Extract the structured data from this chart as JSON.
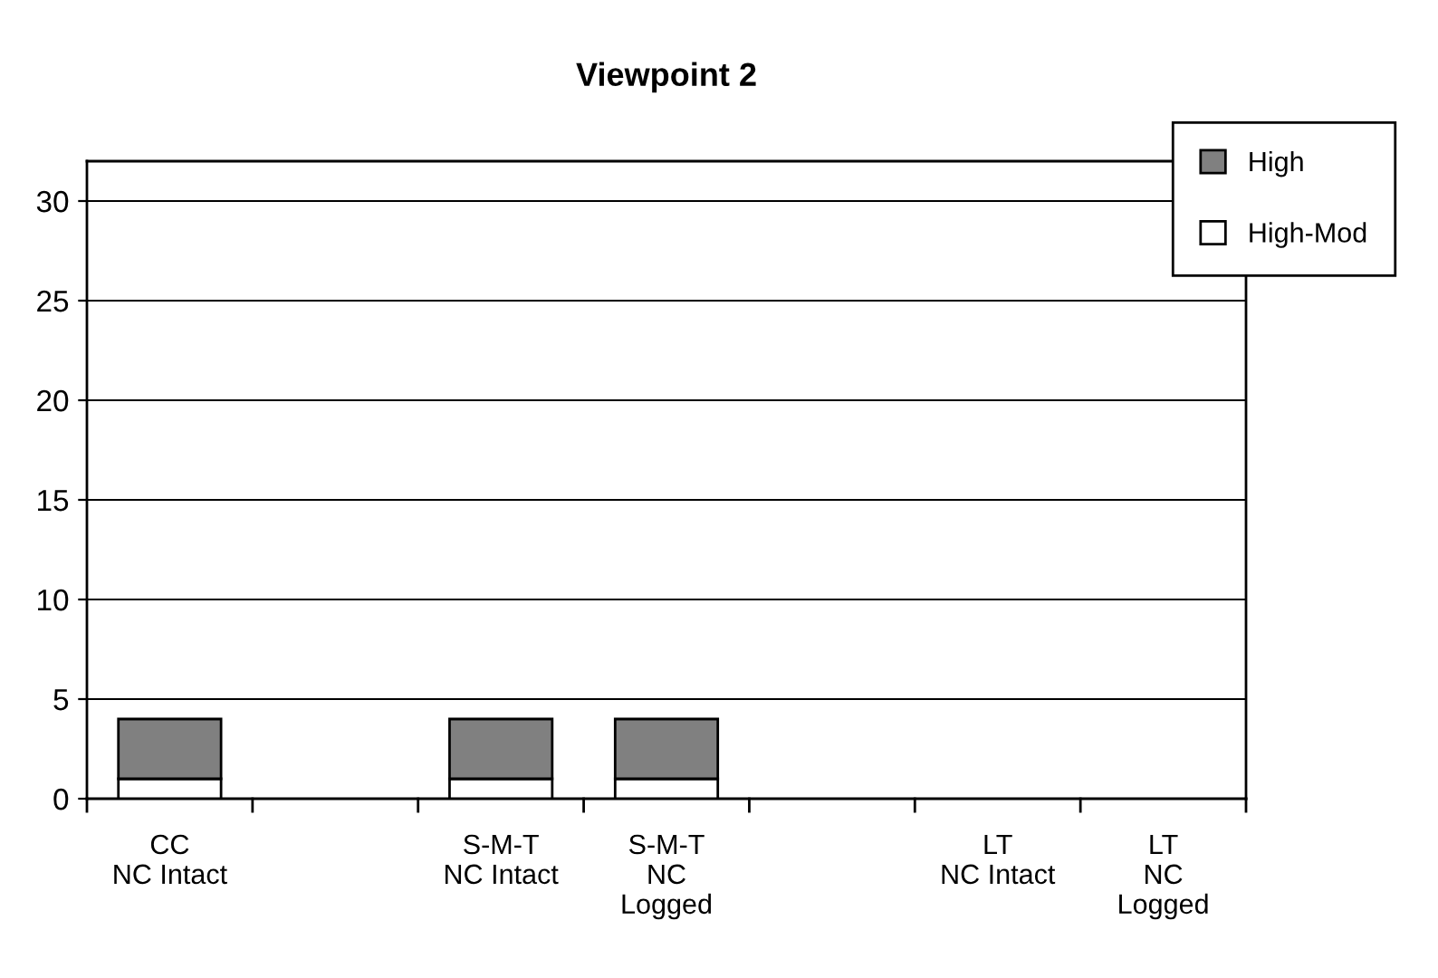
{
  "chart_data": {
    "type": "bar",
    "title": "Viewpoint 2",
    "stacked": true,
    "categories": [
      "CC\nNC Intact",
      null,
      "S-M-T\nNC Intact",
      "S-M-T\nNC\nLogged",
      null,
      "LT\nNC Intact",
      "LT\nNC\nLogged"
    ],
    "series": [
      {
        "name": "High-Mod",
        "color": "#ffffff",
        "values": [
          1,
          0,
          1,
          1,
          0,
          0,
          0
        ]
      },
      {
        "name": "High",
        "color": "#808080",
        "values": [
          3,
          0,
          3,
          3,
          0,
          0,
          0
        ]
      }
    ],
    "ylim": [
      0,
      32
    ],
    "yticks": [
      0,
      5,
      10,
      15,
      20,
      25,
      30
    ],
    "grid": "y",
    "legend": "top right"
  }
}
